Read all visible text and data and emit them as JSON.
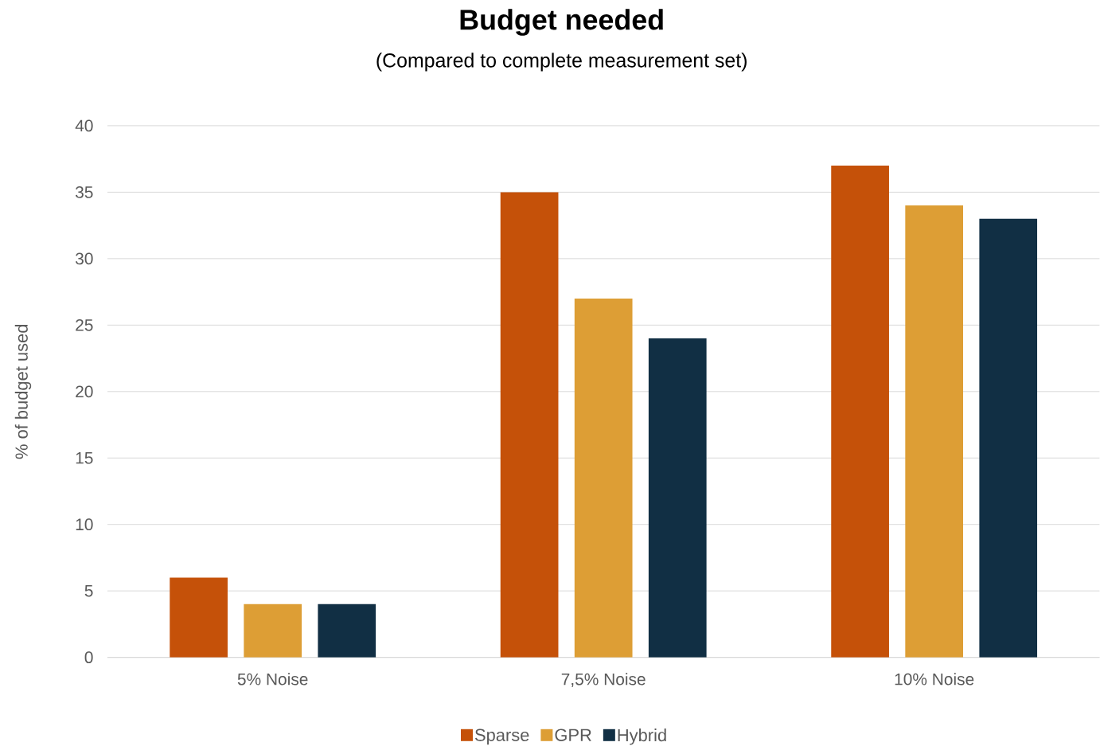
{
  "chart_data": {
    "type": "bar",
    "title": "Budget needed",
    "subtitle": "(Compared to complete measurement set)",
    "ylabel": "% of budget used",
    "categories": [
      "5% Noise",
      "7,5% Noise",
      "10% Noise"
    ],
    "series": [
      {
        "name": "Sparse",
        "color": "#c55109",
        "values": [
          6,
          35,
          37
        ]
      },
      {
        "name": "GPR",
        "color": "#dd9e35",
        "values": [
          4,
          27,
          34
        ]
      },
      {
        "name": "Hybrid",
        "color": "#112f44",
        "values": [
          4,
          24,
          33
        ]
      }
    ],
    "ylim": [
      0,
      40
    ],
    "yticks": [
      0,
      5,
      10,
      15,
      20,
      25,
      30,
      35,
      40
    ],
    "grid": "y",
    "legend": "bottom"
  }
}
